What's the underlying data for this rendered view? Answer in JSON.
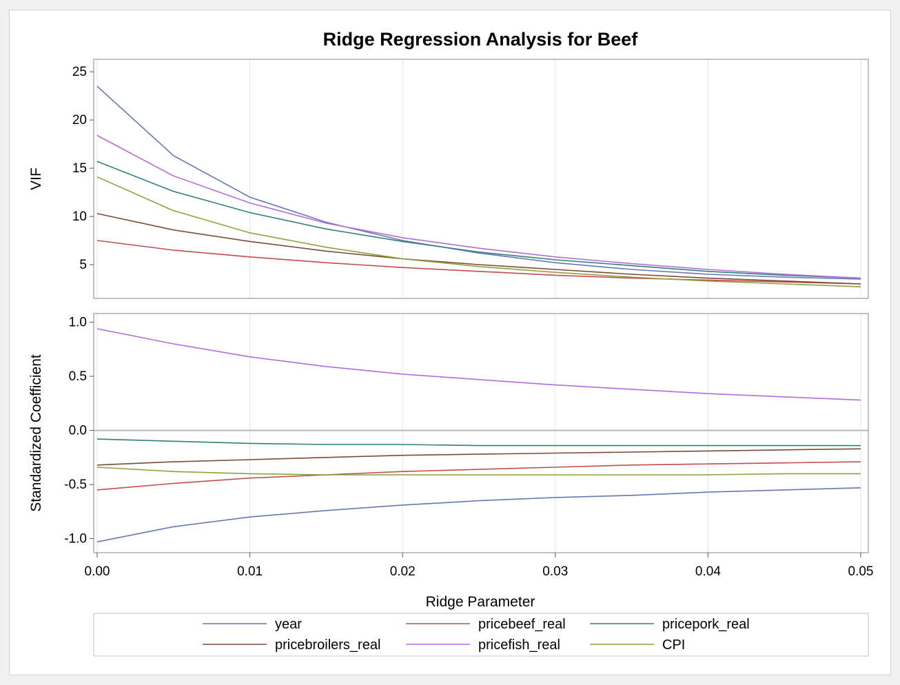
{
  "chart_data": {
    "type": "line",
    "title": "Ridge Regression Analysis for Beef",
    "xlabel": "Ridge Parameter",
    "x": [
      0.0,
      0.005,
      0.01,
      0.015,
      0.02,
      0.025,
      0.03,
      0.035,
      0.04,
      0.045,
      0.05
    ],
    "xlim": [
      0.0,
      0.05
    ],
    "xticks": [
      "0.00",
      "0.01",
      "0.02",
      "0.03",
      "0.04",
      "0.05"
    ],
    "grid": true,
    "legend_position": "bottom",
    "panels": [
      {
        "ylabel": "VIF",
        "ylim": [
          1.5,
          26.3
        ],
        "yticks": [
          "5",
          "10",
          "15",
          "20",
          "25"
        ],
        "series": [
          {
            "name": "year",
            "color": "#6677b3",
            "values": [
              23.5,
              16.3,
              12.0,
              9.4,
              7.5,
              6.2,
              5.2,
              4.5,
              4.0,
              3.7,
              3.5
            ]
          },
          {
            "name": "pricebeef_real",
            "color": "#c24d4d",
            "values": [
              7.5,
              6.5,
              5.8,
              5.2,
              4.7,
              4.3,
              3.9,
              3.6,
              3.4,
              3.2,
              3.0
            ]
          },
          {
            "name": "pricepork_real",
            "color": "#2f7f7a",
            "values": [
              15.7,
              12.6,
              10.4,
              8.7,
              7.4,
              6.3,
              5.5,
              4.9,
              4.3,
              3.9,
              3.6
            ]
          },
          {
            "name": "pricebroilers_real",
            "color": "#7a4a35",
            "values": [
              10.3,
              8.6,
              7.4,
              6.4,
              5.6,
              5.0,
              4.5,
              4.0,
              3.6,
              3.3,
              3.0
            ]
          },
          {
            "name": "pricefish_real",
            "color": "#b36be0",
            "values": [
              18.4,
              14.2,
              11.4,
              9.3,
              7.8,
              6.7,
              5.8,
              5.1,
              4.5,
              4.0,
              3.6
            ]
          },
          {
            "name": "CPI",
            "color": "#8fa03c",
            "values": [
              14.1,
              10.6,
              8.3,
              6.8,
              5.6,
              4.8,
              4.2,
              3.7,
              3.3,
              3.0,
              2.7
            ]
          }
        ]
      },
      {
        "ylabel": "Standardized Coefficient",
        "ylim": [
          -1.13,
          1.08
        ],
        "yticks": [
          "-1.0",
          "-0.5",
          "0.0",
          "0.5",
          "1.0"
        ],
        "reference_line": 0.0,
        "series": [
          {
            "name": "year",
            "color": "#6677b3",
            "values": [
              -1.03,
              -0.89,
              -0.8,
              -0.74,
              -0.69,
              -0.65,
              -0.62,
              -0.6,
              -0.57,
              -0.55,
              -0.53
            ]
          },
          {
            "name": "pricebeef_real",
            "color": "#c24d4d",
            "values": [
              -0.55,
              -0.49,
              -0.44,
              -0.41,
              -0.38,
              -0.36,
              -0.34,
              -0.32,
              -0.31,
              -0.3,
              -0.29
            ]
          },
          {
            "name": "pricepork_real",
            "color": "#2f7f7a",
            "values": [
              -0.08,
              -0.1,
              -0.12,
              -0.13,
              -0.13,
              -0.14,
              -0.14,
              -0.14,
              -0.14,
              -0.14,
              -0.14
            ]
          },
          {
            "name": "pricebroilers_real",
            "color": "#7a4a35",
            "values": [
              -0.32,
              -0.29,
              -0.27,
              -0.25,
              -0.23,
              -0.22,
              -0.21,
              -0.2,
              -0.19,
              -0.18,
              -0.17
            ]
          },
          {
            "name": "pricefish_real",
            "color": "#b36be0",
            "values": [
              0.94,
              0.8,
              0.68,
              0.59,
              0.52,
              0.47,
              0.42,
              0.38,
              0.34,
              0.31,
              0.28
            ]
          },
          {
            "name": "CPI",
            "color": "#8fa03c",
            "values": [
              -0.34,
              -0.38,
              -0.4,
              -0.41,
              -0.41,
              -0.41,
              -0.41,
              -0.41,
              -0.41,
              -0.4,
              -0.4
            ]
          }
        ]
      }
    ]
  }
}
